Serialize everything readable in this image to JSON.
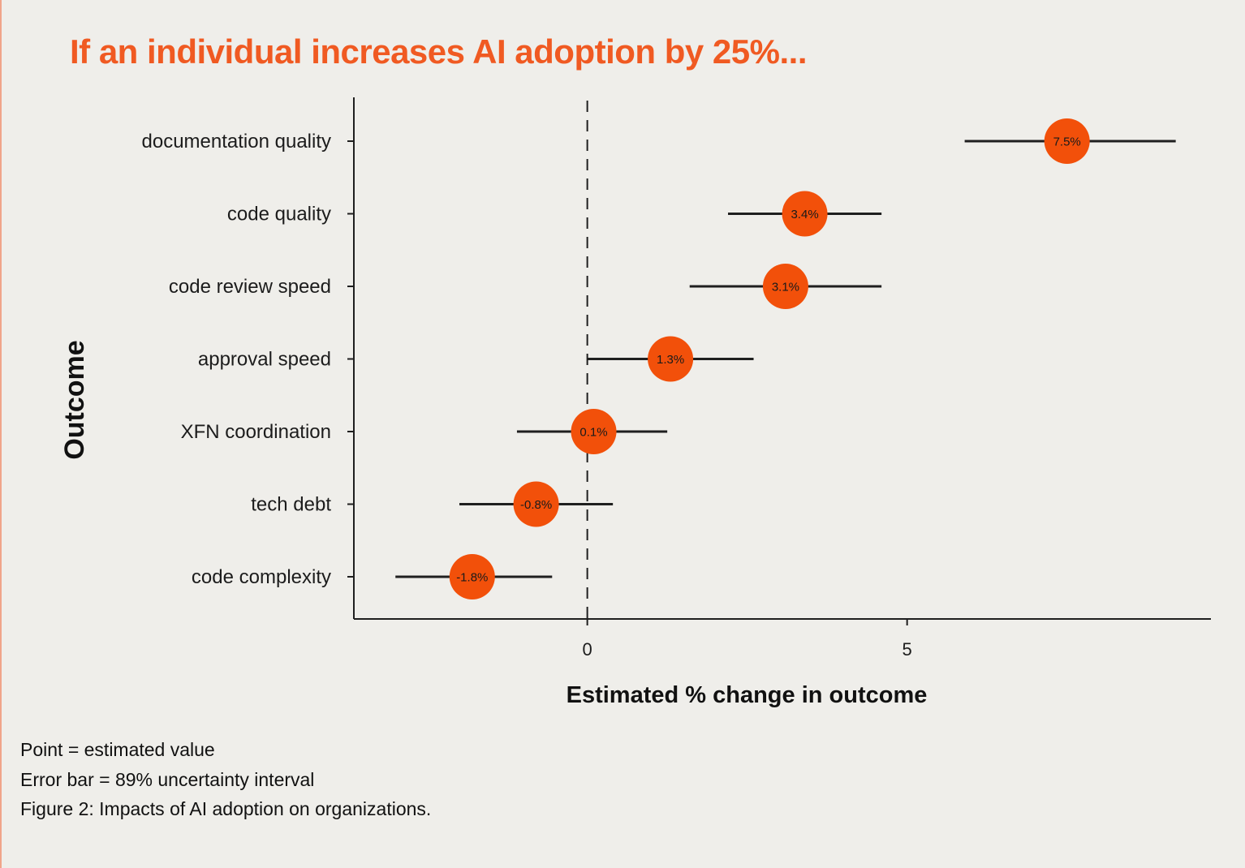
{
  "headline": "If an individual increases AI adoption by 25%...",
  "notes": {
    "point": "Point = estimated value",
    "error_bar": "Error bar = 89% uncertainty interval",
    "caption": "Figure 2: Impacts of AI adoption on organizations."
  },
  "colors": {
    "accent": "#f05a22",
    "point": "#f2500a",
    "line": "#1f1f1f",
    "background": "#efeeea"
  },
  "chart_data": {
    "type": "scatter",
    "variant": "dot-and-whisker",
    "title": "",
    "xlabel": "Estimated % change in outcome",
    "ylabel": "Outcome",
    "xlim": [
      -3.65,
      9.75
    ],
    "xticks": [
      0,
      5
    ],
    "xtick_labels": [
      "0",
      "5"
    ],
    "reference_line": {
      "x": 0,
      "style": "dashed"
    },
    "grid": false,
    "legend": "none",
    "categories": [
      "documentation quality",
      "code quality",
      "code review speed",
      "approval speed",
      "XFN coordination",
      "tech debt",
      "code complexity"
    ],
    "series": [
      {
        "values": [
          7.5,
          3.4,
          3.1,
          1.3,
          0.1,
          -0.8,
          -1.8
        ],
        "value_labels": [
          "7.5%",
          "3.4%",
          "3.1%",
          "1.3%",
          "0.1%",
          "-0.8%",
          "-1.8%"
        ],
        "lower": [
          5.9,
          2.2,
          1.6,
          0.0,
          -1.1,
          -2.0,
          -3.0
        ],
        "upper": [
          9.2,
          4.6,
          4.6,
          2.6,
          1.25,
          0.4,
          -0.55
        ]
      }
    ]
  }
}
